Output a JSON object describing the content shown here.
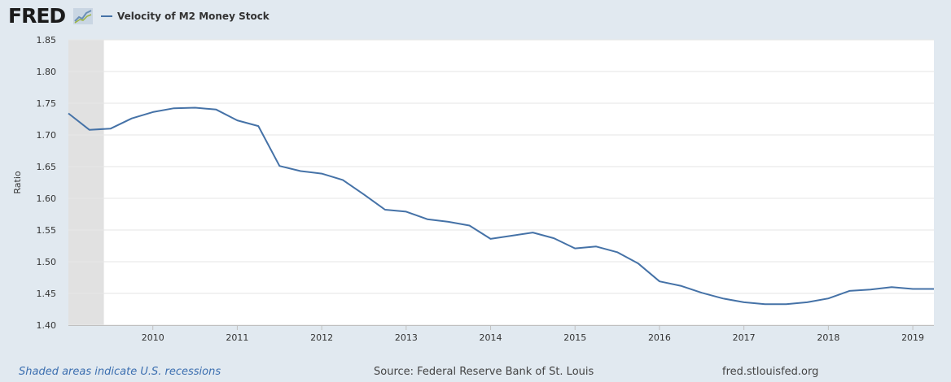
{
  "header": {
    "logo_text": "FRED",
    "logo_icon": "chart-line-icon",
    "legend_label": "Velocity of M2 Money Stock"
  },
  "footer": {
    "recession_note": "Shaded areas indicate U.S. recessions",
    "source": "Source: Federal Reserve Bank of St. Louis",
    "site": "fred.stlouisfed.org"
  },
  "colors": {
    "line": "#4572a7",
    "recession": "#e1e1e1",
    "page_bg": "#e1e9f0",
    "plot_bg": "#ffffff",
    "grid": "#e6e6e6"
  },
  "chart_data": {
    "type": "line",
    "ylabel": "Ratio",
    "xlabel": "",
    "ylim": [
      1.4,
      1.85
    ],
    "xlim": [
      2009.0,
      2019.25
    ],
    "grid": true,
    "legend_position": "top-left",
    "y_ticks": [
      "1.40",
      "1.45",
      "1.50",
      "1.55",
      "1.60",
      "1.65",
      "1.70",
      "1.75",
      "1.80",
      "1.85"
    ],
    "x_ticks": [
      "2010",
      "2011",
      "2012",
      "2013",
      "2014",
      "2015",
      "2016",
      "2017",
      "2018",
      "2019"
    ],
    "recessions": [
      {
        "start": 2009.0,
        "end": 2009.42
      }
    ],
    "series": [
      {
        "name": "Velocity of M2 Money Stock",
        "x": [
          2009.0,
          2009.25,
          2009.5,
          2009.75,
          2010.0,
          2010.25,
          2010.5,
          2010.75,
          2011.0,
          2011.25,
          2011.5,
          2011.75,
          2012.0,
          2012.25,
          2012.5,
          2012.75,
          2013.0,
          2013.25,
          2013.5,
          2013.75,
          2014.0,
          2014.25,
          2014.5,
          2014.75,
          2015.0,
          2015.25,
          2015.5,
          2015.75,
          2016.0,
          2016.25,
          2016.5,
          2016.75,
          2017.0,
          2017.25,
          2017.5,
          2017.75,
          2018.0,
          2018.25,
          2018.5,
          2018.75,
          2019.0,
          2019.25
        ],
        "values": [
          1.734,
          1.708,
          1.71,
          1.726,
          1.736,
          1.742,
          1.743,
          1.74,
          1.723,
          1.714,
          1.651,
          1.643,
          1.639,
          1.629,
          1.606,
          1.582,
          1.579,
          1.567,
          1.563,
          1.557,
          1.536,
          1.541,
          1.546,
          1.537,
          1.521,
          1.524,
          1.515,
          1.497,
          1.469,
          1.462,
          1.451,
          1.442,
          1.436,
          1.433,
          1.433,
          1.436,
          1.442,
          1.454,
          1.456,
          1.46,
          1.457,
          1.457
        ]
      }
    ]
  }
}
